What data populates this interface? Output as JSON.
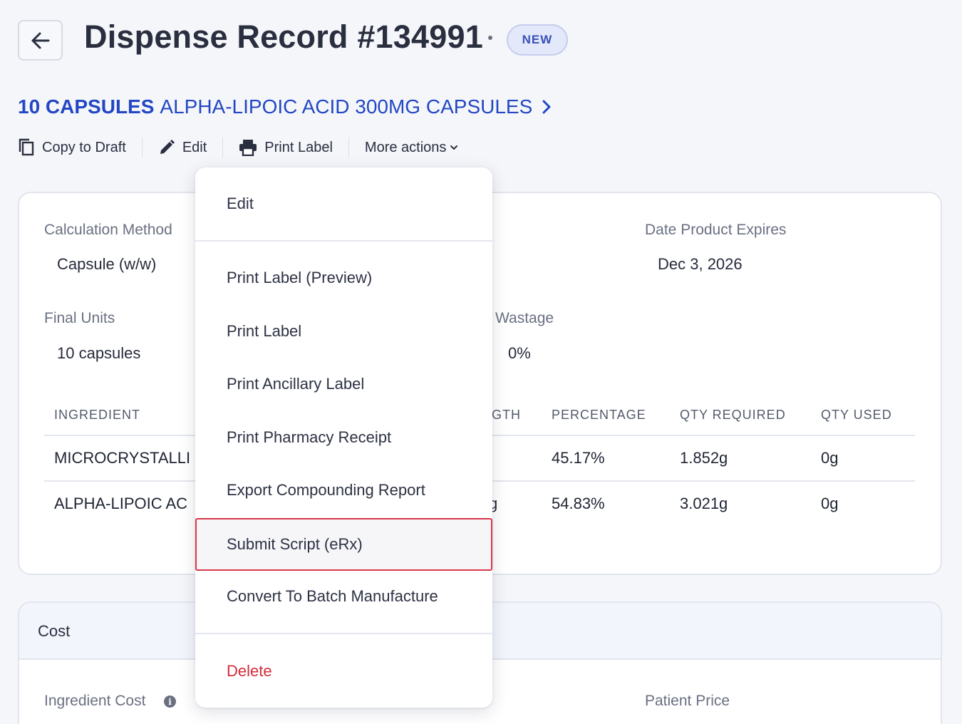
{
  "header": {
    "title": "Dispense Record #134991",
    "badge": "NEW"
  },
  "product": {
    "quantity": "10 CAPSULES",
    "name": "ALPHA-LIPOIC ACID 300MG CAPSULES"
  },
  "actions": {
    "copy_to_draft": "Copy to Draft",
    "edit": "Edit",
    "print_label": "Print Label",
    "more_actions": "More actions"
  },
  "details": {
    "calculation_method_label": "Calculation Method",
    "calculation_method_value": "Capsule (w/w)",
    "date_expires_label": "Date Product Expires",
    "date_expires_value": "Dec 3, 2026",
    "final_units_label": "Final Units",
    "final_units_value": "10 capsules",
    "wastage_label": "Wastage",
    "wastage_value": "0%"
  },
  "table": {
    "columns": {
      "ingredient": "INGREDIENT",
      "strength_partial": "GTH",
      "percentage": "PERCENTAGE",
      "qty_required": "QTY REQUIRED",
      "qty_used": "QTY USED"
    },
    "rows": [
      {
        "ingredient": "MICROCRYSTALLI",
        "strength": "",
        "percentage": "45.17%",
        "qty_required": "1.852g",
        "qty_used": "0g"
      },
      {
        "ingredient": "ALPHA-LIPOIC AC",
        "strength": "g",
        "percentage": "54.83%",
        "qty_required": "3.021g",
        "qty_used": "0g"
      }
    ]
  },
  "cost": {
    "title": "Cost",
    "ingredient_cost_label": "Ingredient Cost",
    "patient_price_label": "Patient Price"
  },
  "menu": {
    "items": [
      {
        "label": "Edit"
      },
      {
        "label": "Print Label (Preview)"
      },
      {
        "label": "Print Label"
      },
      {
        "label": "Print Ancillary Label"
      },
      {
        "label": "Print Pharmacy Receipt"
      },
      {
        "label": "Export Compounding Report"
      },
      {
        "label": "Submit Script (eRx)"
      },
      {
        "label": "Convert To Batch Manufacture"
      },
      {
        "label": "Delete"
      }
    ]
  },
  "colors": {
    "link_blue": "#2347c4",
    "danger_red": "#d42b3a",
    "highlight_border": "#d6384a"
  }
}
